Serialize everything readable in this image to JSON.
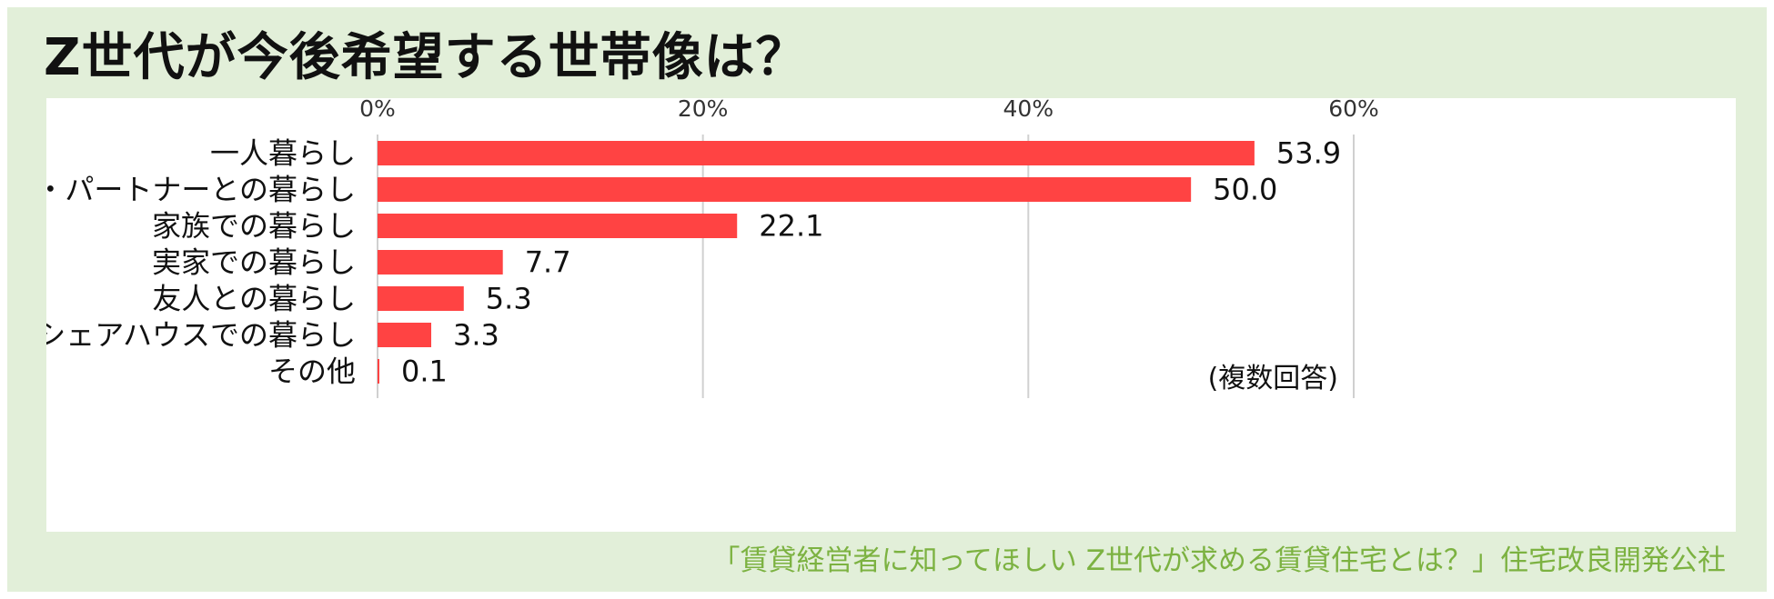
{
  "title": "Z世代が今後希望する世帯像は？",
  "source": "「賃貸経営者に知ってほしい Z世代が求める賃貸住宅とは？」住宅改良開発公社",
  "colors": {
    "background": "#e2efd9",
    "panel": "#ffffff",
    "bar": "#ff4343",
    "title": "#111111",
    "source": "#7cb241",
    "grid": "#d0d0d0"
  },
  "chart_data": {
    "type": "bar",
    "orientation": "horizontal",
    "categories": [
      "一人暮らし",
      "恋人・パートナーとの暮らし",
      "家族での暮らし",
      "実家での暮らし",
      "友人との暮らし",
      "シェアハウスでの暮らし",
      "その他"
    ],
    "values": [
      53.9,
      50.0,
      22.1,
      7.7,
      5.3,
      3.3,
      0.1
    ],
    "value_labels": [
      "53.9",
      "50.0",
      "22.1",
      "7.7",
      "5.3",
      "3.3",
      "0.1"
    ],
    "xlim": [
      0,
      60
    ],
    "x_ticks": [
      0,
      20,
      40,
      60
    ],
    "x_tick_labels": [
      "0%",
      "20%",
      "40%",
      "60%"
    ],
    "x_axis_position": "top",
    "grid": true,
    "note": "(複数回答)"
  }
}
